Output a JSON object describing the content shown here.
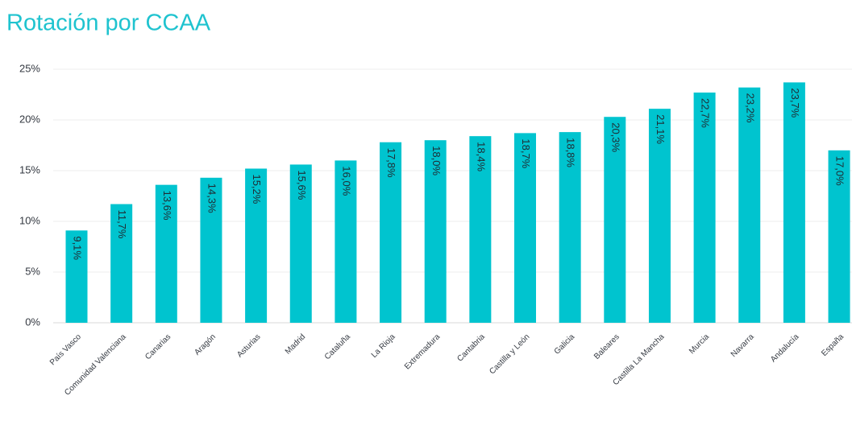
{
  "chart_data": {
    "type": "bar",
    "title": "Rotación por CCAA",
    "categories": [
      "País Vasco",
      "Comunidad Valenciana",
      "Canarias",
      "Aragón",
      "Asturias",
      "Madrid",
      "Cataluña",
      "La Rioja",
      "Extremadura",
      "Cantabria",
      "Castilla y León",
      "Galicia",
      "Baleares",
      "Castilla La Mancha",
      "Murcia",
      "Navarra",
      "Andalucía",
      "España"
    ],
    "values": [
      9.1,
      11.7,
      13.6,
      14.3,
      15.2,
      15.6,
      16.0,
      17.8,
      18.0,
      18.4,
      18.7,
      18.8,
      20.3,
      21.1,
      22.7,
      23.2,
      23.7,
      17.0
    ],
    "value_labels": [
      "9,1%",
      "11,7%",
      "13,6%",
      "14,3%",
      "15,2%",
      "15,6%",
      "16,0%",
      "17,8%",
      "18,0%",
      "18,4%",
      "18,7%",
      "18,8%",
      "20,3%",
      "21,1%",
      "22,7%",
      "23,2%",
      "23,7%",
      "17,0%"
    ],
    "color": "#00c4cf",
    "ylim": [
      0,
      25
    ],
    "yticks": [
      {
        "value": 0,
        "label": "0%"
      },
      {
        "value": 5,
        "label": "5%"
      },
      {
        "value": 10,
        "label": "10%"
      },
      {
        "value": 15,
        "label": "15%"
      },
      {
        "value": 20,
        "label": "20%"
      },
      {
        "value": 25,
        "label": "25%"
      }
    ],
    "grid": true
  }
}
